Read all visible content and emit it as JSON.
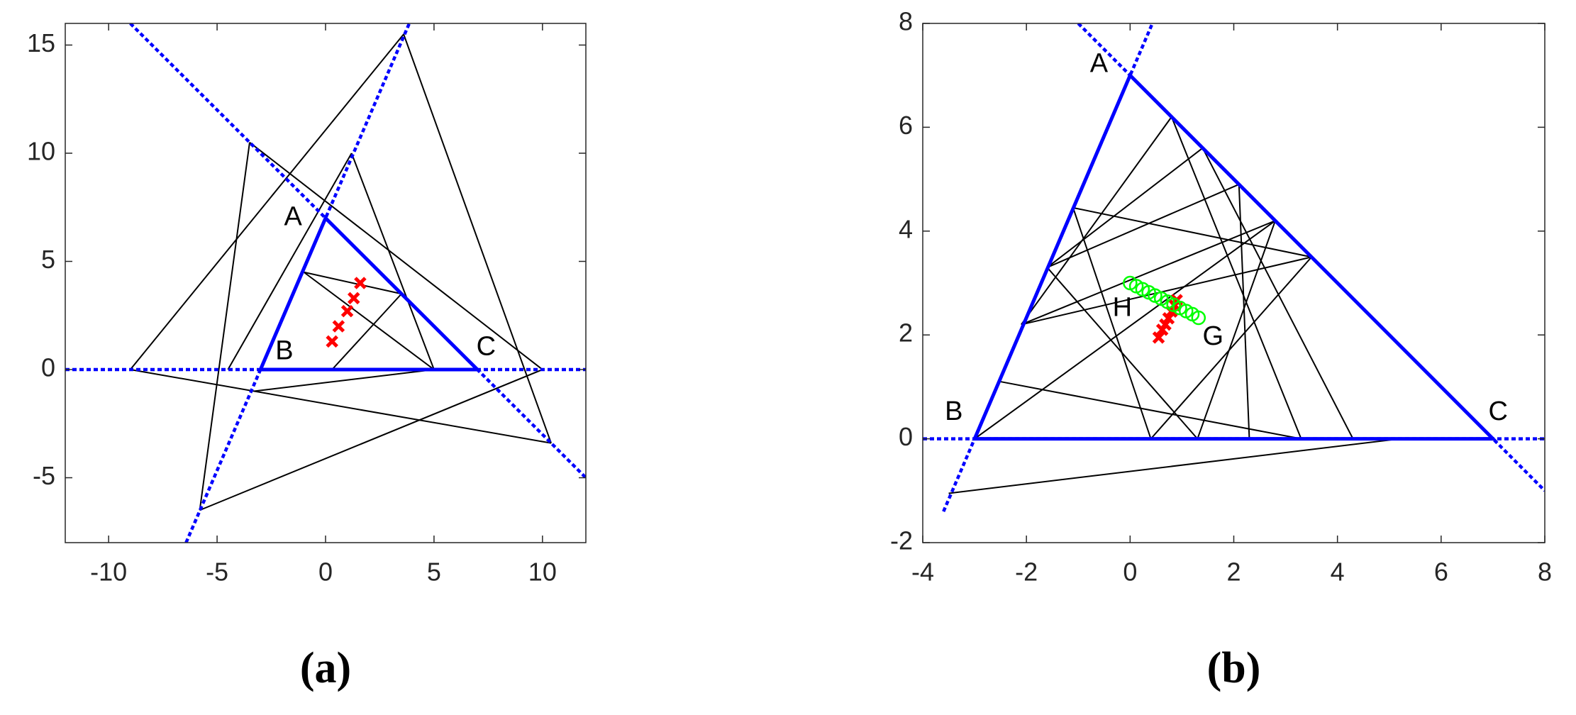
{
  "chart_data": [
    {
      "type": "line",
      "caption": "(a)",
      "xlim": [
        -12,
        12
      ],
      "ylim": [
        -8,
        16
      ],
      "xticks": [
        -10,
        -5,
        0,
        5,
        10
      ],
      "yticks": [
        -5,
        0,
        5,
        10,
        15
      ],
      "triangle": {
        "x": [
          0,
          -3,
          7
        ],
        "y": [
          7,
          0,
          0
        ],
        "color": "#0000ff"
      },
      "extended_lines": [
        {
          "x": [
            -12,
            12
          ],
          "y": [
            0,
            0
          ]
        },
        {
          "x": [
            -6.43,
            3.86
          ],
          "y": [
            -8,
            16
          ]
        },
        {
          "x": [
            -9,
            12
          ],
          "y": [
            16,
            -5
          ]
        }
      ],
      "segment_color": "#000000",
      "segments": [
        {
          "x": [
            -1,
            3.5
          ],
          "y": [
            4.5,
            3.5
          ]
        },
        {
          "x": [
            -1,
            5
          ],
          "y": [
            4.5,
            0
          ]
        },
        {
          "x": [
            0.3,
            3.5
          ],
          "y": [
            0,
            3.5
          ]
        },
        {
          "x": [
            1.2,
            5
          ],
          "y": [
            10,
            0
          ]
        },
        {
          "x": [
            1.2,
            -4.5
          ],
          "y": [
            10,
            0
          ]
        },
        {
          "x": [
            -3.5,
            10
          ],
          "y": [
            10.5,
            0
          ]
        },
        {
          "x": [
            -3.5,
            -5.8
          ],
          "y": [
            10.5,
            -6.5
          ]
        },
        {
          "x": [
            -9,
            3.6
          ],
          "y": [
            0,
            15.5
          ]
        },
        {
          "x": [
            3.6,
            10.4
          ],
          "y": [
            15.5,
            -3.4
          ]
        },
        {
          "x": [
            -9,
            10.4
          ],
          "y": [
            0,
            -3.4
          ]
        },
        {
          "x": [
            -5.8,
            10
          ],
          "y": [
            -6.5,
            0
          ]
        },
        {
          "x": [
            -3.3,
            5
          ],
          "y": [
            -1,
            0
          ]
        }
      ],
      "series": [
        {
          "marker": "x",
          "color": "#ff0000",
          "x": [
            0.3,
            0.6,
            1.0,
            1.3,
            1.6
          ],
          "y": [
            1.3,
            2.0,
            2.7,
            3.3,
            4.0
          ]
        }
      ],
      "annotations": [
        {
          "text": "A",
          "x": -1.5,
          "y": 7.0
        },
        {
          "text": "B",
          "x": -1.9,
          "y": 0.8
        },
        {
          "text": "C",
          "x": 7.4,
          "y": 1.0
        }
      ]
    },
    {
      "type": "line",
      "caption": "(b)",
      "xlim": [
        -4,
        8
      ],
      "ylim": [
        -2,
        8
      ],
      "xticks": [
        -4,
        -2,
        0,
        2,
        4,
        6,
        8
      ],
      "yticks": [
        -2,
        0,
        2,
        4,
        6,
        8
      ],
      "triangle": {
        "x": [
          0,
          -3,
          7
        ],
        "y": [
          7,
          0,
          0
        ],
        "color": "#0000ff"
      },
      "extended_lines": [
        {
          "x": [
            -4,
            8
          ],
          "y": [
            0,
            0
          ]
        },
        {
          "x": [
            -3.6,
            0.43
          ],
          "y": [
            -1.4,
            8
          ]
        },
        {
          "x": [
            -1,
            8
          ],
          "y": [
            8,
            -1
          ]
        }
      ],
      "segment_color": "#000000",
      "segments": [
        {
          "x": [
            -1.1,
            3.5
          ],
          "y": [
            4.45,
            3.5
          ]
        },
        {
          "x": [
            -1.1,
            0.4
          ],
          "y": [
            4.45,
            0
          ]
        },
        {
          "x": [
            0.8,
            -2.1
          ],
          "y": [
            6.2,
            2.2
          ]
        },
        {
          "x": [
            0.8,
            3.3
          ],
          "y": [
            6.2,
            0
          ]
        },
        {
          "x": [
            1.4,
            -1.6
          ],
          "y": [
            5.6,
            3.3
          ]
        },
        {
          "x": [
            1.4,
            4.3
          ],
          "y": [
            5.6,
            0
          ]
        },
        {
          "x": [
            2.1,
            2.3
          ],
          "y": [
            4.9,
            0
          ]
        },
        {
          "x": [
            2.8,
            -2.1
          ],
          "y": [
            4.2,
            2.2
          ]
        },
        {
          "x": [
            2.8,
            1.3
          ],
          "y": [
            4.2,
            0
          ]
        },
        {
          "x": [
            3.5,
            0.4
          ],
          "y": [
            3.5,
            0
          ]
        },
        {
          "x": [
            -1.6,
            2.1
          ],
          "y": [
            3.3,
            4.9
          ]
        },
        {
          "x": [
            -2.5,
            3.3
          ],
          "y": [
            1.1,
            0
          ]
        },
        {
          "x": [
            -3,
            2.8
          ],
          "y": [
            0,
            4.2
          ]
        },
        {
          "x": [
            -2.1,
            3.5
          ],
          "y": [
            2.2,
            3.5
          ]
        },
        {
          "x": [
            -3,
            5.2
          ],
          "y": [
            0,
            0
          ]
        },
        {
          "x": [
            -3.5,
            5.2
          ],
          "y": [
            -1.05,
            0
          ]
        },
        {
          "x": [
            -1.6,
            1.3
          ],
          "y": [
            3.3,
            0
          ]
        }
      ],
      "series": [
        {
          "marker": "x",
          "color": "#ff0000",
          "x": [
            0.55,
            0.62,
            0.68,
            0.74,
            0.8,
            0.86,
            0.9
          ],
          "y": [
            1.95,
            2.1,
            2.2,
            2.32,
            2.45,
            2.57,
            2.67
          ]
        },
        {
          "marker": "o",
          "color": "#00ff00",
          "x": [
            0,
            0.12,
            0.24,
            0.36,
            0.48,
            0.6,
            0.72,
            0.84,
            0.96,
            1.08,
            1.2,
            1.32
          ],
          "y": [
            3.0,
            2.94,
            2.88,
            2.82,
            2.76,
            2.7,
            2.64,
            2.58,
            2.52,
            2.46,
            2.4,
            2.33
          ]
        }
      ],
      "annotations": [
        {
          "text": "A",
          "x": -0.6,
          "y": 7.2
        },
        {
          "text": "B",
          "x": -3.4,
          "y": 0.5
        },
        {
          "text": "C",
          "x": 7.1,
          "y": 0.5
        },
        {
          "text": "H",
          "x": -0.15,
          "y": 2.5
        },
        {
          "text": "G",
          "x": 1.6,
          "y": 1.95
        }
      ]
    }
  ]
}
